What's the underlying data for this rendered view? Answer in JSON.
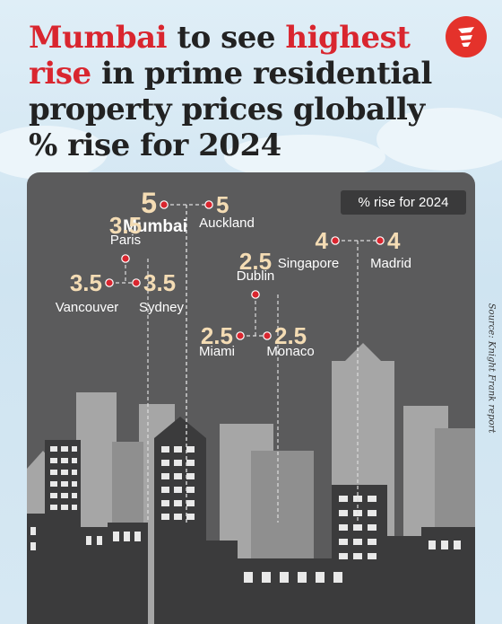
{
  "headline": {
    "part1": "Mumbai",
    "part2": " to see ",
    "part3": "highest",
    "part4": "rise",
    "part5": " in prime residential property prices globally",
    "part6": "% rise for 2024"
  },
  "legend_label": "% rise for 2024",
  "source": "Source: Knight Frank report",
  "colors": {
    "accent": "#d9262f",
    "value_text": "#f4dcb4",
    "panel": "#5b5b5c",
    "marker": "#d9262f"
  },
  "chart_data": {
    "type": "scatter",
    "title": "Mumbai to see highest rise in prime residential property prices globally",
    "subtitle": "% rise for 2024",
    "legend": [
      "% rise for 2024"
    ],
    "points": [
      {
        "city": "Mumbai",
        "value": 5,
        "display": "5"
      },
      {
        "city": "Auckland",
        "value": 5,
        "display": "5"
      },
      {
        "city": "Singapore",
        "value": 4,
        "display": "4"
      },
      {
        "city": "Madrid",
        "value": 4,
        "display": "4"
      },
      {
        "city": "Paris",
        "value": 3.5,
        "display": "3.5"
      },
      {
        "city": "Vancouver",
        "value": 3.5,
        "display": "3.5"
      },
      {
        "city": "Sydney",
        "value": 3.5,
        "display": "3.5"
      },
      {
        "city": "Dublin",
        "value": 2.5,
        "display": "2.5"
      },
      {
        "city": "Miami",
        "value": 2.5,
        "display": "2.5"
      },
      {
        "city": "Monaco",
        "value": 2.5,
        "display": "2.5"
      }
    ]
  }
}
